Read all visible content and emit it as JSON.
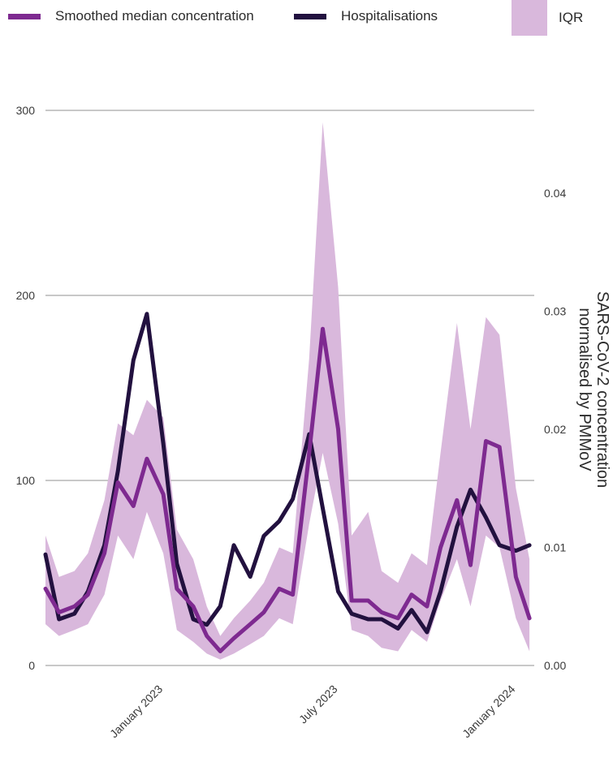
{
  "legend": {
    "median_label": "Smoothed median concentration",
    "hosp_label": "Hospitalisations",
    "iqr_label": "IQR"
  },
  "colors": {
    "median": "#7e2a90",
    "hospitalisations": "#22113f",
    "iqr": "#d9b8dc",
    "grid": "#c8c8c8"
  },
  "chart_data": {
    "type": "line",
    "y_left": {
      "ticks": [
        0,
        100,
        200,
        300
      ],
      "ylim": [
        0,
        300
      ],
      "label": ""
    },
    "y_right": {
      "ticks": [
        "0.00",
        "0.01",
        "0.02",
        "0.03",
        "0.04"
      ],
      "ylim": [
        0,
        0.047
      ],
      "label_line1": "SARS-CoV-2 concentration",
      "label_line2": "normalised by PMMoV"
    },
    "x_ticks": [
      "January 2023",
      "July 2023",
      "January 2024"
    ],
    "grid": true,
    "legend_position": "top",
    "series": [
      {
        "name": "Smoothed median concentration",
        "axis": "right",
        "x": [
          "2022-09-01",
          "2022-09-15",
          "2022-10-01",
          "2022-10-15",
          "2022-11-01",
          "2022-11-15",
          "2022-12-01",
          "2022-12-15",
          "2023-01-01",
          "2023-01-15",
          "2023-02-01",
          "2023-02-15",
          "2023-03-01",
          "2023-03-15",
          "2023-04-01",
          "2023-04-15",
          "2023-05-01",
          "2023-05-15",
          "2023-06-01",
          "2023-06-15",
          "2023-07-01",
          "2023-07-15",
          "2023-08-01",
          "2023-08-15",
          "2023-09-01",
          "2023-09-15",
          "2023-10-01",
          "2023-10-15",
          "2023-11-01",
          "2023-11-15",
          "2023-12-01",
          "2023-12-15",
          "2024-01-01",
          "2024-01-15"
        ],
        "values": [
          0.0065,
          0.0045,
          0.005,
          0.006,
          0.0095,
          0.0155,
          0.0135,
          0.0175,
          0.0145,
          0.0065,
          0.005,
          0.0025,
          0.0012,
          0.0023,
          0.0035,
          0.0045,
          0.0065,
          0.006,
          0.018,
          0.0285,
          0.02,
          0.0055,
          0.0055,
          0.0045,
          0.004,
          0.006,
          0.005,
          0.01,
          0.014,
          0.0085,
          0.019,
          0.0185,
          0.0075,
          0.004
        ]
      },
      {
        "name": "Hospitalisations",
        "axis": "left",
        "x": [
          "2022-09-01",
          "2022-09-15",
          "2022-10-01",
          "2022-10-15",
          "2022-11-01",
          "2022-11-15",
          "2022-12-01",
          "2022-12-15",
          "2023-01-01",
          "2023-01-15",
          "2023-02-01",
          "2023-02-15",
          "2023-03-01",
          "2023-03-15",
          "2023-04-01",
          "2023-04-15",
          "2023-05-01",
          "2023-05-15",
          "2023-06-01",
          "2023-06-15",
          "2023-07-01",
          "2023-07-15",
          "2023-08-01",
          "2023-08-15",
          "2023-09-01",
          "2023-09-15",
          "2023-10-01",
          "2023-10-15",
          "2023-11-01",
          "2023-11-15",
          "2023-12-01",
          "2023-12-15",
          "2024-01-01",
          "2024-01-15"
        ],
        "values": [
          60,
          25,
          28,
          40,
          65,
          105,
          165,
          190,
          120,
          55,
          25,
          22,
          32,
          65,
          48,
          70,
          78,
          90,
          125,
          85,
          40,
          28,
          25,
          25,
          20,
          30,
          18,
          40,
          75,
          95,
          80,
          65,
          62,
          65
        ]
      },
      {
        "name": "IQR",
        "axis": "right",
        "x": [
          "2022-09-01",
          "2022-09-15",
          "2022-10-01",
          "2022-10-15",
          "2022-11-01",
          "2022-11-15",
          "2022-12-01",
          "2022-12-15",
          "2023-01-01",
          "2023-01-15",
          "2023-02-01",
          "2023-02-15",
          "2023-03-01",
          "2023-03-15",
          "2023-04-01",
          "2023-04-15",
          "2023-05-01",
          "2023-05-15",
          "2023-06-01",
          "2023-06-15",
          "2023-07-01",
          "2023-07-15",
          "2023-08-01",
          "2023-08-15",
          "2023-09-01",
          "2023-09-15",
          "2023-10-01",
          "2023-10-15",
          "2023-11-01",
          "2023-11-15",
          "2023-12-01",
          "2023-12-15",
          "2024-01-01",
          "2024-01-15"
        ],
        "lower": [
          0.0035,
          0.0025,
          0.003,
          0.0035,
          0.006,
          0.011,
          0.009,
          0.013,
          0.0095,
          0.003,
          0.002,
          0.001,
          0.0005,
          0.001,
          0.0018,
          0.0025,
          0.004,
          0.0035,
          0.012,
          0.018,
          0.012,
          0.003,
          0.0025,
          0.0015,
          0.0012,
          0.003,
          0.002,
          0.0055,
          0.009,
          0.005,
          0.011,
          0.01,
          0.004,
          0.0012
        ],
        "upper": [
          0.011,
          0.0075,
          0.008,
          0.0095,
          0.014,
          0.0205,
          0.0195,
          0.0225,
          0.021,
          0.0115,
          0.009,
          0.005,
          0.0025,
          0.004,
          0.0055,
          0.007,
          0.01,
          0.0095,
          0.026,
          0.046,
          0.032,
          0.011,
          0.013,
          0.008,
          0.007,
          0.0095,
          0.0085,
          0.018,
          0.029,
          0.02,
          0.0295,
          0.028,
          0.015,
          0.009
        ]
      }
    ]
  }
}
